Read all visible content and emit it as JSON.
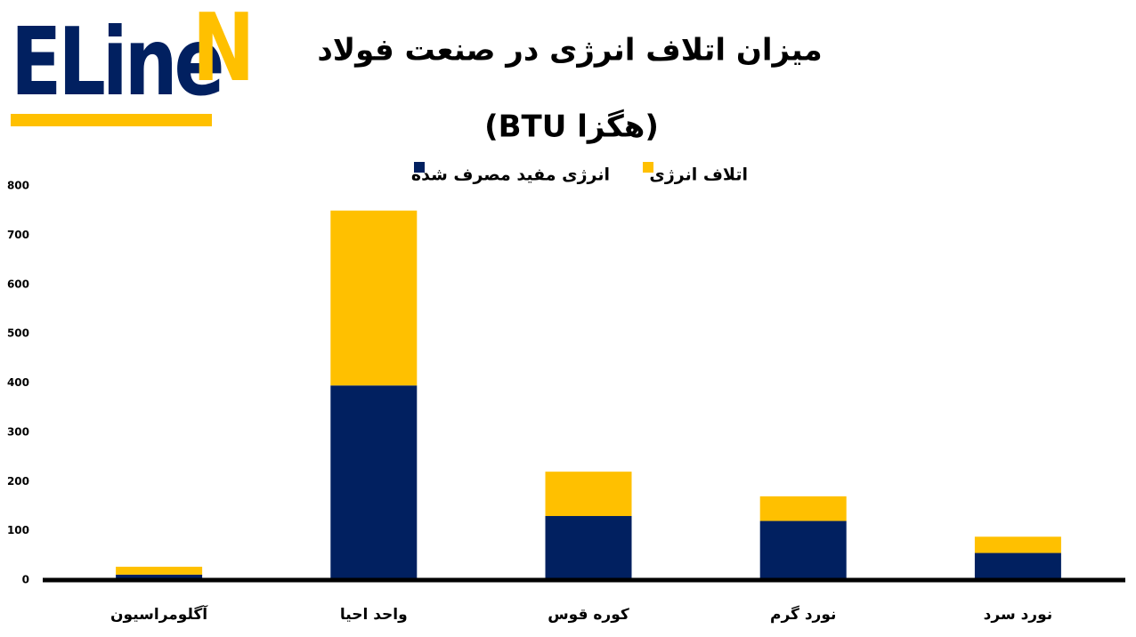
{
  "logo": [
    "ELine",
    "N"
  ],
  "chart_data": {
    "type": "stacked_bar",
    "title": "میزان اتلاف انرژی در صنعت فولاد",
    "subtitle": "(هگزا BTU)",
    "categories": [
      "آگلومراسیون",
      "واحد احیا",
      "کوره قوس",
      "نورد گرم",
      "نورد سرد"
    ],
    "series": [
      {
        "name": "انرژی مفید مصرف شده",
        "color": "#012060",
        "values": [
          11,
          395,
          130,
          120,
          55
        ]
      },
      {
        "name": "اتلاف انرژی",
        "color": "#ffc000",
        "values": [
          16,
          355,
          90,
          50,
          33
        ]
      }
    ],
    "ylim": [
      0,
      800
    ],
    "yticks": [
      0,
      100,
      200,
      300,
      400,
      500,
      600,
      700,
      800
    ],
    "grid": false,
    "legend": "top"
  }
}
